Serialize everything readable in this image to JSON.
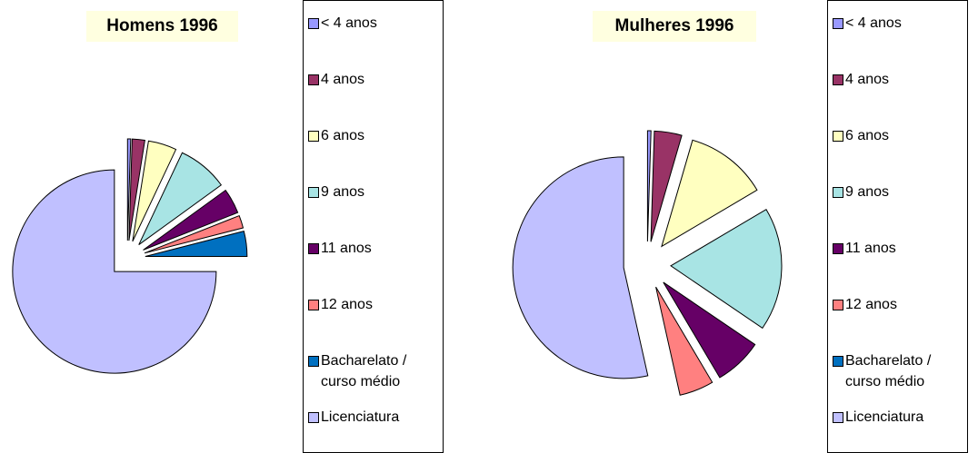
{
  "chart_data": [
    {
      "type": "pie",
      "title": "Homens  1996",
      "categories": [
        "< 4 anos",
        "4 anos",
        "6 anos",
        "9 anos",
        "11 anos",
        "12 anos",
        "Bacharelato / curso médio",
        "Licenciatura"
      ],
      "values": [
        0.5,
        2,
        4.5,
        8,
        4,
        2,
        4,
        75
      ],
      "colors": [
        "#9999ff",
        "#993366",
        "#ffffc0",
        "#a8e4e4",
        "#660066",
        "#ff8080",
        "#0070c0",
        "#c0c0ff"
      ]
    },
    {
      "type": "pie",
      "title": "Mulheres 1996",
      "categories": [
        "< 4 anos",
        "4 anos",
        "6 anos",
        "9 anos",
        "11 anos",
        "12 anos",
        "Bacharelato / curso médio",
        "Licenciatura"
      ],
      "values": [
        0.5,
        4,
        12,
        18,
        7,
        5,
        0,
        53.5
      ],
      "colors": [
        "#9999ff",
        "#993366",
        "#ffffc0",
        "#a8e4e4",
        "#660066",
        "#ff8080",
        "#0070c0",
        "#c0c0ff"
      ]
    }
  ]
}
